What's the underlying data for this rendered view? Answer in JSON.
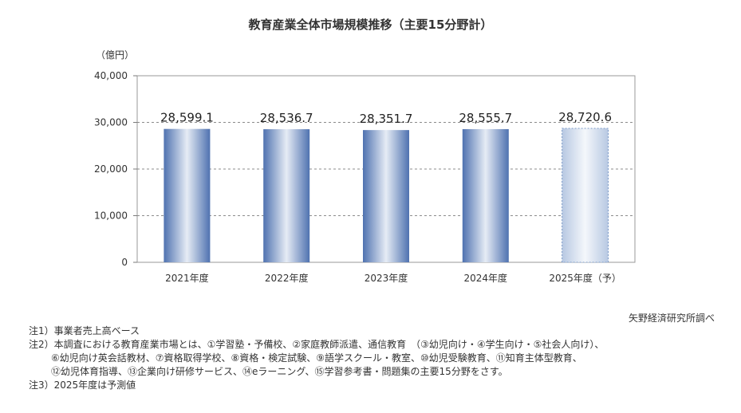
{
  "title": "教育産業全体市場規模推移（主要15分野計）",
  "unit_label": "（億円）",
  "source": "矢野経済研究所調べ",
  "notes": [
    "注1）事業者売上高ベース",
    "注2）本調査における教育産業市場とは、①学習塾・予備校、②家庭教師派遣、通信教育　（③幼児向け・④学生向け・⑤社会人向け）、",
    "⑥幼児向け英会話教材、⑦資格取得学校、⑧資格・検定試験、⑨語学スクール・教室、⑩幼児受験教育、⑪知育主体型教育、",
    "⑫幼児体育指導、⑬企業向け研修サービス、⑭eラーニング、⑮学習参考書・問題集の主要15分野をさす。",
    "注3）2025年度は予測値"
  ],
  "chart_data": {
    "type": "bar",
    "title": "教育産業全体市場規模推移（主要15分野計）",
    "ylabel": "（億円）",
    "categories": [
      "2021年度",
      "2022年度",
      "2023年度",
      "2024年度",
      "2025年度（予）"
    ],
    "values": [
      28599.1,
      28536.7,
      28351.7,
      28555.7,
      28720.6
    ],
    "value_labels": [
      "28,599.1",
      "28,536.7",
      "28,351.7",
      "28,555.7",
      "28,720.6"
    ],
    "forecast": [
      false,
      false,
      false,
      false,
      true
    ],
    "ylim": [
      0,
      40000
    ],
    "yticks": [
      0,
      10000,
      20000,
      30000,
      40000
    ],
    "ytick_labels": [
      "0",
      "10,000",
      "20,000",
      "30,000",
      "40,000"
    ],
    "grid": "dashed horizontal",
    "legend": "none",
    "colors": {
      "bar_dark": "#4f72b0",
      "bar_light": "#e6ecf5",
      "forecast_light": "#f4f7fb",
      "forecast_dark": "#b7c8e2",
      "grid": "#8c8c8c"
    }
  }
}
